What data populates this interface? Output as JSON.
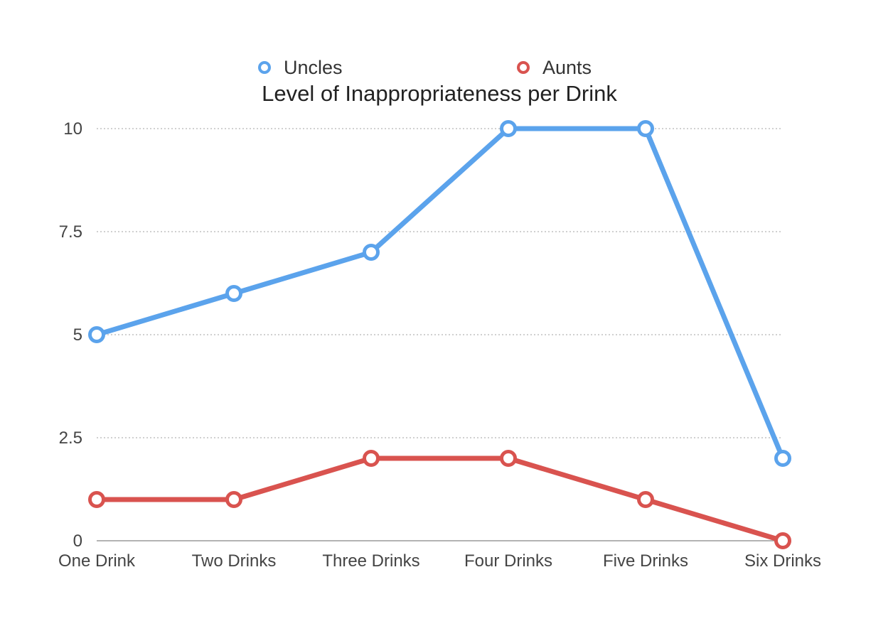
{
  "chart_data": {
    "type": "line",
    "title": "Level of Inappropriateness per Drink",
    "xlabel": "",
    "ylabel": "",
    "categories": [
      "One Drink",
      "Two Drinks",
      "Three Drinks",
      "Four Drinks",
      "Five Drinks",
      "Six Drinks"
    ],
    "ylim": [
      0,
      10
    ],
    "yticks": [
      "0",
      "2.5",
      "5",
      "7.5",
      "10"
    ],
    "grid": true,
    "legend_position": "top-center",
    "series": [
      {
        "name": "Uncles",
        "color": "#5ba3ec",
        "values": [
          5,
          6,
          7,
          10,
          10,
          2
        ]
      },
      {
        "name": "Aunts",
        "color": "#d9534f",
        "values": [
          1,
          1,
          2,
          2,
          1,
          0
        ]
      }
    ]
  }
}
